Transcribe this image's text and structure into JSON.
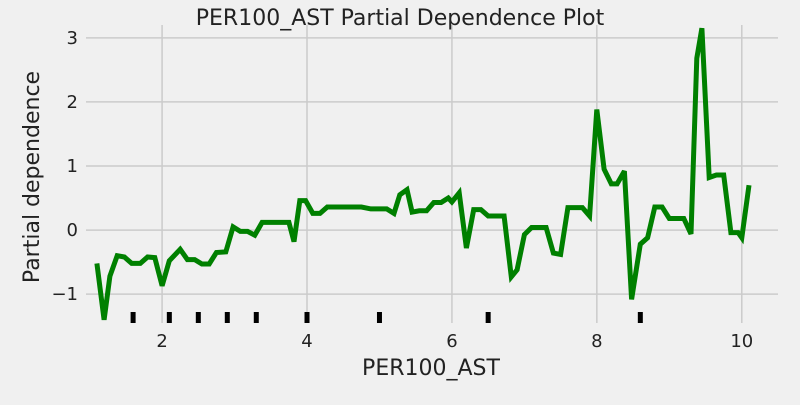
{
  "chart_data": {
    "type": "line",
    "title": "PER100_AST Partial Dependence Plot",
    "xlabel": "PER100_AST",
    "ylabel": "Partial dependence",
    "xlim": [
      0.95,
      10.5
    ],
    "ylim": [
      -1.45,
      3.2
    ],
    "grid": true,
    "x_ticks": [
      2,
      4,
      6,
      8,
      10
    ],
    "y_ticks": [
      -1,
      0,
      1,
      2,
      3
    ],
    "x_tick_labels": [
      "2",
      "4",
      "6",
      "8",
      "10"
    ],
    "y_tick_labels": [
      "−1",
      "0",
      "1",
      "2",
      "3"
    ],
    "line_color": "#008000",
    "rug_color": "#000000",
    "deciles": [
      1.6,
      2.1,
      2.5,
      2.9,
      3.3,
      4.0,
      5.0,
      6.5,
      8.6
    ],
    "series": [
      {
        "x": [
          1.1,
          1.2,
          1.28,
          1.38,
          1.48,
          1.58,
          1.7,
          1.8,
          1.9,
          2.0,
          2.1,
          2.25,
          2.35,
          2.45,
          2.55,
          2.65,
          2.75,
          2.88,
          2.98,
          3.08,
          3.18,
          3.28,
          3.38,
          3.5,
          3.62,
          3.75,
          3.82,
          3.9,
          3.98,
          4.08,
          4.18,
          4.28,
          4.4,
          4.6,
          4.75,
          4.88,
          5.0,
          5.1,
          5.2,
          5.28,
          5.38,
          5.45,
          5.55,
          5.65,
          5.75,
          5.85,
          5.95,
          6.0,
          6.1,
          6.2,
          6.3,
          6.4,
          6.5,
          6.6,
          6.72,
          6.82,
          6.9,
          7.0,
          7.1,
          7.2,
          7.3,
          7.4,
          7.5,
          7.6,
          7.7,
          7.8,
          7.9,
          8.0,
          8.1,
          8.2,
          8.28,
          8.38,
          8.48,
          8.6,
          8.7,
          8.8,
          8.9,
          9.0,
          9.1,
          9.2,
          9.3,
          9.38,
          9.45,
          9.55,
          9.65,
          9.75,
          9.85,
          9.95,
          10.0,
          10.1
        ],
        "y": [
          -0.52,
          -1.4,
          -0.72,
          -0.4,
          -0.42,
          -0.52,
          -0.52,
          -0.42,
          -0.43,
          -0.87,
          -0.48,
          -0.3,
          -0.46,
          -0.46,
          -0.53,
          -0.53,
          -0.35,
          -0.34,
          0.05,
          -0.02,
          -0.02,
          -0.08,
          0.12,
          0.12,
          0.12,
          0.12,
          -0.18,
          0.46,
          0.46,
          0.26,
          0.26,
          0.36,
          0.36,
          0.36,
          0.36,
          0.33,
          0.33,
          0.33,
          0.26,
          0.55,
          0.63,
          0.28,
          0.3,
          0.3,
          0.43,
          0.43,
          0.5,
          0.44,
          0.58,
          -0.28,
          0.32,
          0.32,
          0.22,
          0.22,
          0.22,
          -0.73,
          -0.62,
          -0.07,
          0.04,
          0.04,
          0.04,
          -0.36,
          -0.38,
          0.35,
          0.35,
          0.35,
          0.22,
          1.88,
          0.95,
          0.72,
          0.72,
          0.92,
          -1.08,
          -0.22,
          -0.12,
          0.36,
          0.36,
          0.18,
          0.18,
          0.18,
          -0.06,
          2.68,
          3.15,
          0.82,
          0.86,
          0.86,
          -0.04,
          -0.04,
          -0.12,
          0.7
        ]
      }
    ]
  }
}
